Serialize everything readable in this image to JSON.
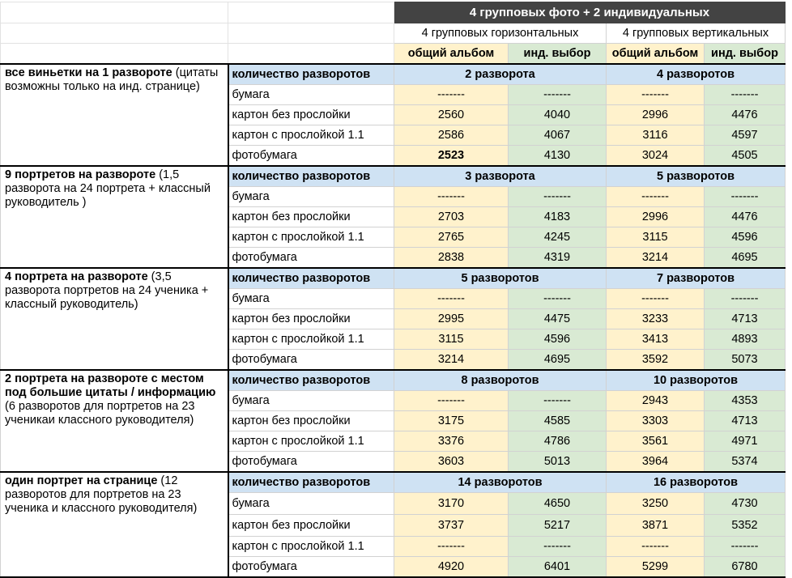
{
  "header": {
    "title": "4 групповых фото + 2 индивидуальных",
    "sub_horizontal": "4 групповых горизонтальных",
    "sub_vertical": "4 групповых вертикальных",
    "col_common": "общий альбом",
    "col_individual": "инд. выбор"
  },
  "groups": [
    {
      "label_bold": "все виньетки на 1 развороте",
      "label_rest": " (цитаты возможны только на инд. странице)",
      "spreads_label": "количество разворотов",
      "spreads_h": "2 разворота",
      "spreads_v": "4 разворотов",
      "rows": [
        {
          "type": "бумага",
          "h_common": "-------",
          "h_ind": "-------",
          "v_common": "-------",
          "v_ind": "-------",
          "bold_h_common": false
        },
        {
          "type": "картон без прослойки",
          "h_common": "2560",
          "h_ind": "4040",
          "v_common": "2996",
          "v_ind": "4476",
          "bold_h_common": false
        },
        {
          "type": "картон с прослойкой 1.1",
          "h_common": "2586",
          "h_ind": "4067",
          "v_common": "3116",
          "v_ind": "4597",
          "bold_h_common": false
        },
        {
          "type": "фотобумага",
          "h_common": "2523",
          "h_ind": "4130",
          "v_common": "3024",
          "v_ind": "4505",
          "bold_h_common": true
        }
      ]
    },
    {
      "label_bold": "9 портретов на развороте",
      "label_rest": " (1,5 разворота на 24 портрета + классный руководитель )",
      "spreads_label": "количество разворотов",
      "spreads_h": "3 разворота",
      "spreads_v": "5 разворотов",
      "rows": [
        {
          "type": "бумага",
          "h_common": "-------",
          "h_ind": "-------",
          "v_common": "-------",
          "v_ind": "-------",
          "bold_h_common": false
        },
        {
          "type": "картон без прослойки",
          "h_common": "2703",
          "h_ind": "4183",
          "v_common": "2996",
          "v_ind": "4476",
          "bold_h_common": false
        },
        {
          "type": "картон с прослойкой 1.1",
          "h_common": "2765",
          "h_ind": "4245",
          "v_common": "3115",
          "v_ind": "4596",
          "bold_h_common": false
        },
        {
          "type": "фотобумага",
          "h_common": "2838",
          "h_ind": "4319",
          "v_common": "3214",
          "v_ind": "4695",
          "bold_h_common": false
        }
      ]
    },
    {
      "label_bold": "4 портрета на развороте",
      "label_rest": " (3,5 разворота портретов на 24 ученика + классный руководитель)",
      "spreads_label": "количество разворотов",
      "spreads_h": "5 разворотов",
      "spreads_v": "7 разворотов",
      "rows": [
        {
          "type": "бумага",
          "h_common": "-------",
          "h_ind": "-------",
          "v_common": "-------",
          "v_ind": "-------",
          "bold_h_common": false
        },
        {
          "type": "картон без прослойки",
          "h_common": "2995",
          "h_ind": "4475",
          "v_common": "3233",
          "v_ind": "4713",
          "bold_h_common": false
        },
        {
          "type": "картон с прослойкой 1.1",
          "h_common": "3115",
          "h_ind": "4596",
          "v_common": "3413",
          "v_ind": "4893",
          "bold_h_common": false
        },
        {
          "type": "фотобумага",
          "h_common": "3214",
          "h_ind": "4695",
          "v_common": "3592",
          "v_ind": "5073",
          "bold_h_common": false
        }
      ]
    },
    {
      "label_bold": "2 портрета на развороте с местом под большие цитаты / информацию",
      "label_rest": " (6 разворотов для портретов на 23 ученикаи классного руководителя)",
      "spreads_label": "количество разворотов",
      "spreads_h": "8 разворотов",
      "spreads_v": "10 разворотов",
      "rows": [
        {
          "type": "бумага",
          "h_common": "-------",
          "h_ind": "-------",
          "v_common": "2943",
          "v_ind": "4353",
          "bold_h_common": false
        },
        {
          "type": "картон без прослойки",
          "h_common": "3175",
          "h_ind": "4585",
          "v_common": "3303",
          "v_ind": "4713",
          "bold_h_common": false
        },
        {
          "type": "картон с прослойкой 1.1",
          "h_common": "3376",
          "h_ind": "4786",
          "v_common": "3561",
          "v_ind": "4971",
          "bold_h_common": false
        },
        {
          "type": "фотобумага",
          "h_common": "3603",
          "h_ind": "5013",
          "v_common": "3964",
          "v_ind": "5374",
          "bold_h_common": false
        }
      ]
    },
    {
      "label_bold": "один портрет на странице",
      "label_rest": " (12 разворотов для портретов на 23 ученика и классного руководителя)",
      "spreads_label": "количество разворотов",
      "spreads_h": "14 разворотов",
      "spreads_v": "16 разворотов",
      "rows": [
        {
          "type": "бумага",
          "h_common": "3170",
          "h_ind": "4650",
          "v_common": "3250",
          "v_ind": "4730",
          "bold_h_common": false
        },
        {
          "type": "картон без прослойки",
          "h_common": "3737",
          "h_ind": "5217",
          "v_common": "3871",
          "v_ind": "5352",
          "bold_h_common": false
        },
        {
          "type": "картон с прослойкой 1.1",
          "h_common": "-------",
          "h_ind": "-------",
          "v_common": "-------",
          "v_ind": "-------",
          "bold_h_common": false
        },
        {
          "type": "фотобумага",
          "h_common": "4920",
          "h_ind": "6401",
          "v_common": "5299",
          "v_ind": "6780",
          "bold_h_common": false
        }
      ]
    }
  ]
}
